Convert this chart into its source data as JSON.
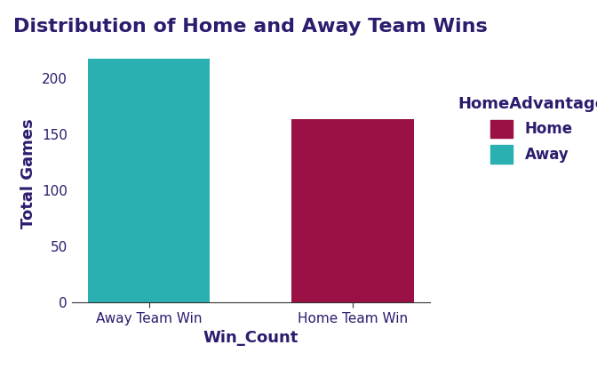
{
  "title": "Distribution of Home and Away Team Wins",
  "categories": [
    "Away Team Win",
    "Home Team Win"
  ],
  "values": [
    217,
    163
  ],
  "bar_colors": [
    "#2ab0b0",
    "#9b1045"
  ],
  "legend_title": "HomeAdvantage",
  "legend_labels": [
    "Home",
    "Away"
  ],
  "legend_colors": [
    "#9b1045",
    "#2ab0b0"
  ],
  "xlabel": "Win_Count",
  "ylabel": "Total Games",
  "ylim": [
    0,
    230
  ],
  "yticks": [
    0,
    50,
    100,
    150,
    200
  ],
  "title_fontsize": 16,
  "axis_label_fontsize": 13,
  "tick_fontsize": 11,
  "legend_fontsize": 12,
  "text_color": "#2d1b6e",
  "background_color": "#ffffff"
}
